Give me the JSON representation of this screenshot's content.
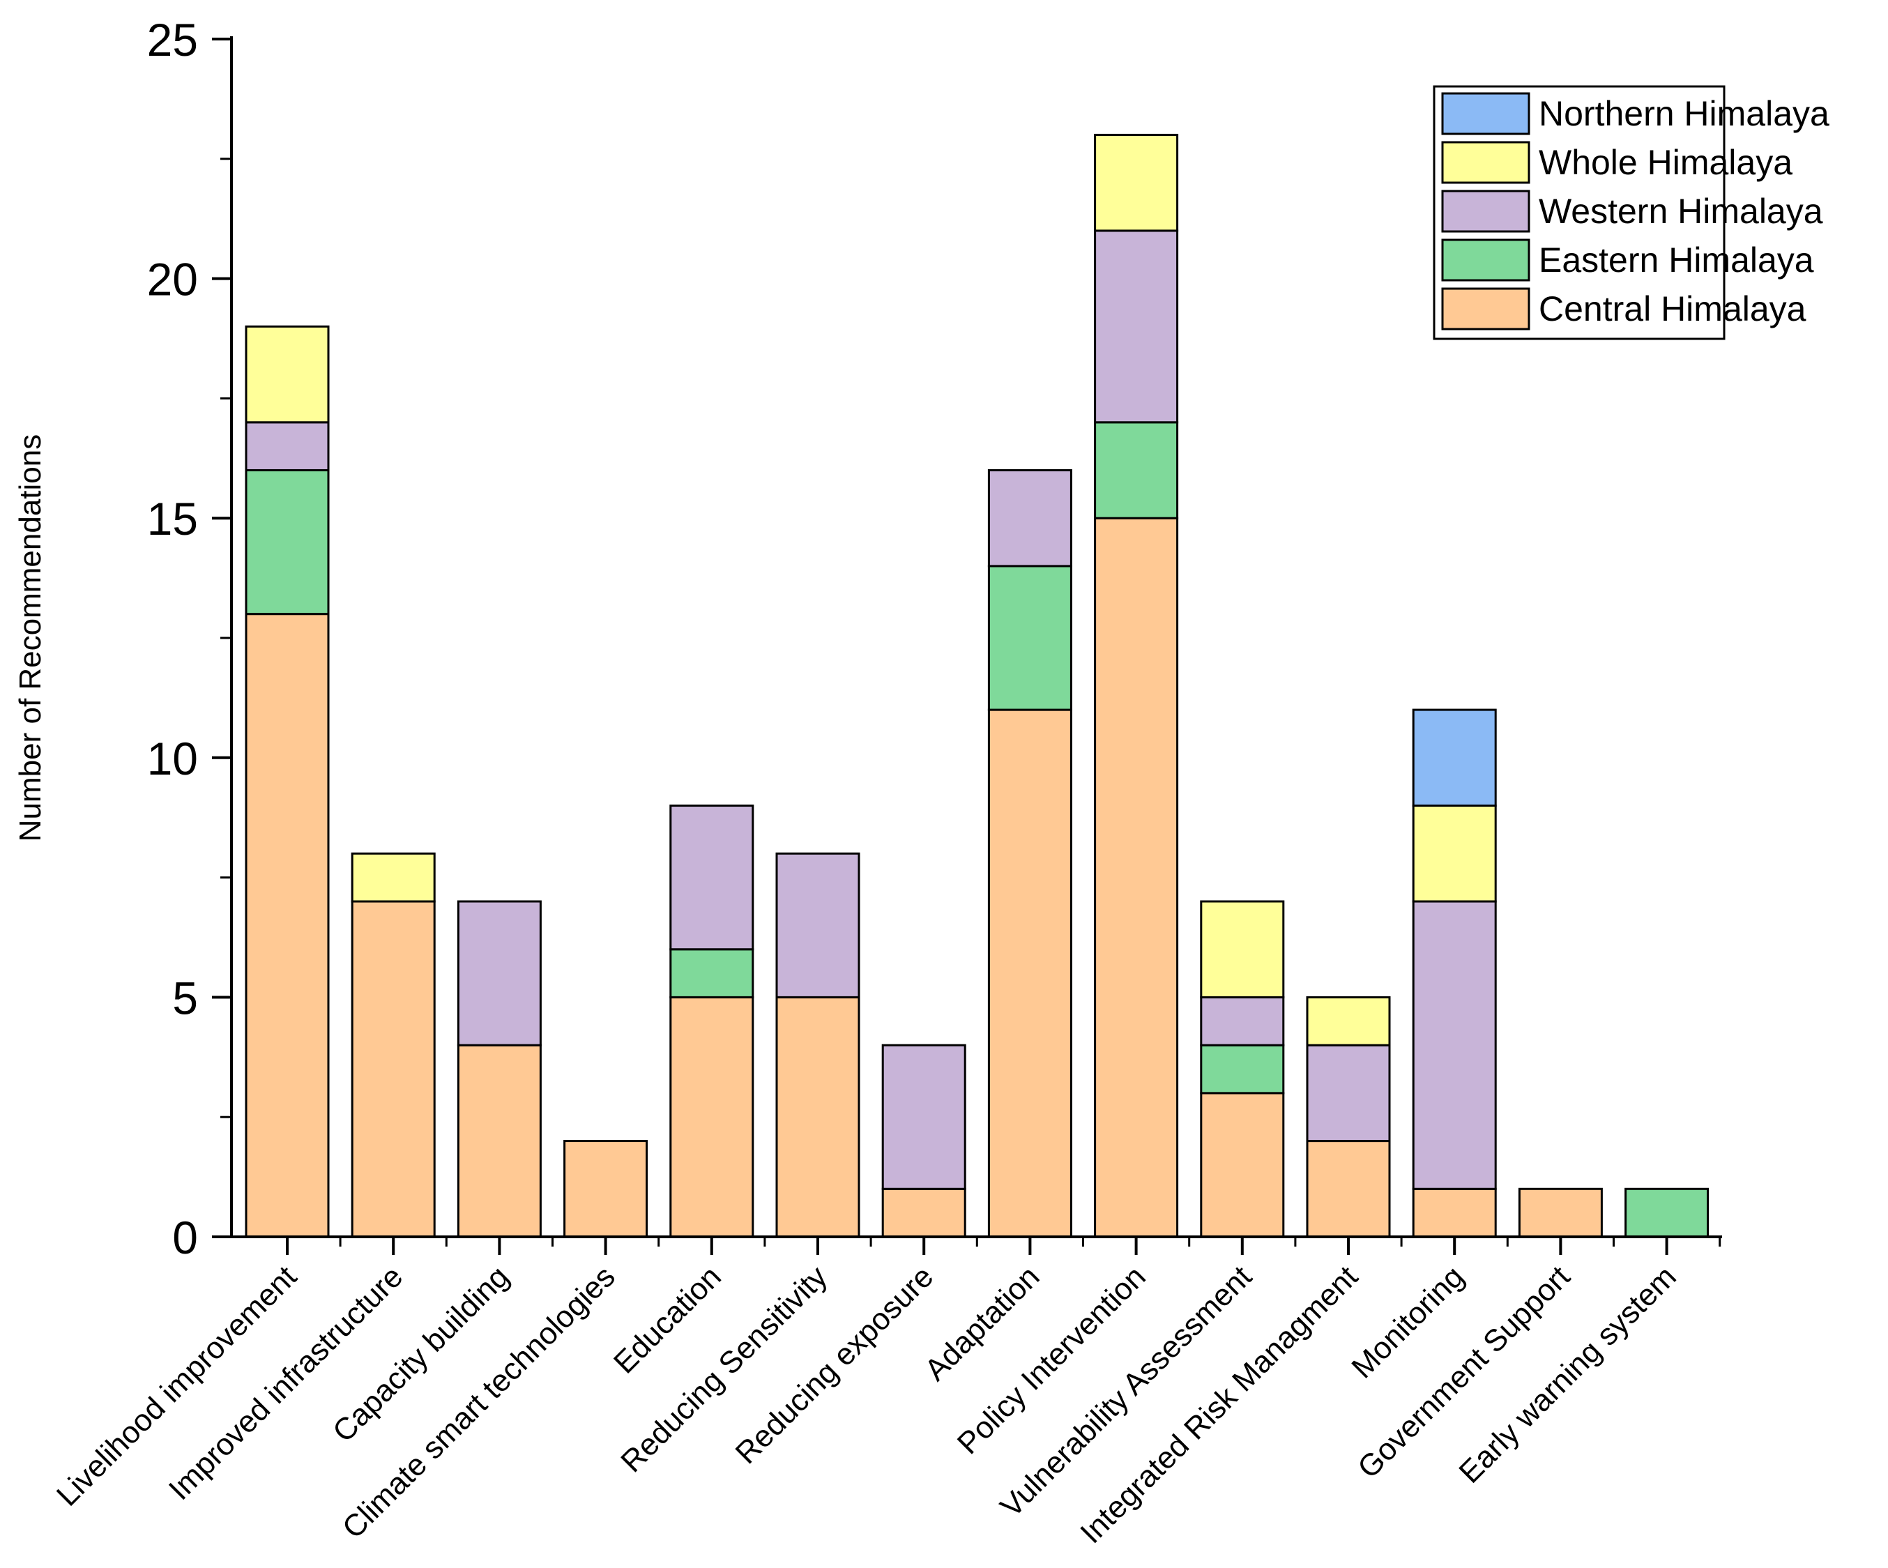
{
  "chart_data": {
    "type": "bar",
    "stacked": true,
    "ylabel": "Number of Recommendations",
    "xlabel": "",
    "ylim": [
      0,
      25
    ],
    "yticks": [
      0,
      5,
      10,
      15,
      20,
      25
    ],
    "grid": false,
    "legend_position": "top-right",
    "categories": [
      "Livelihood improvement",
      "Improved infrastructure",
      "Capacity building",
      "Climate smart technologies",
      "Education",
      "Reducing Sensitivity",
      "Reducing exposure",
      "Adaptation",
      "Policy Intervention",
      "Vulnerability Assessment",
      "Integrated Risk Managment",
      "Monitoring",
      "Government Support",
      "Early warning system"
    ],
    "series": [
      {
        "name": "Central Himalaya",
        "color": "#FFC994",
        "values": [
          13,
          7,
          4,
          2,
          5,
          5,
          1,
          11,
          15,
          3,
          2,
          1,
          1,
          0
        ]
      },
      {
        "name": "Eastern Himalaya",
        "color": "#7FD99A",
        "values": [
          3,
          0,
          0,
          0,
          1,
          0,
          0,
          3,
          2,
          1,
          0,
          0,
          0,
          1
        ]
      },
      {
        "name": "Western Himalaya",
        "color": "#C8B4D8",
        "values": [
          1,
          0,
          3,
          0,
          3,
          3,
          3,
          2,
          4,
          1,
          2,
          6,
          0,
          0
        ]
      },
      {
        "name": "Whole Himalaya",
        "color": "#FFFF99",
        "values": [
          2,
          1,
          0,
          0,
          0,
          0,
          0,
          0,
          2,
          2,
          1,
          2,
          0,
          0
        ]
      },
      {
        "name": "Northern Himalaya",
        "color": "#8BBAF5",
        "values": [
          0,
          0,
          0,
          0,
          0,
          0,
          0,
          0,
          0,
          0,
          0,
          2,
          0,
          0
        ]
      }
    ],
    "legend_order": [
      "Northern Himalaya",
      "Whole Himalaya",
      "Western Himalaya",
      "Eastern Himalaya",
      "Central Himalaya"
    ]
  }
}
